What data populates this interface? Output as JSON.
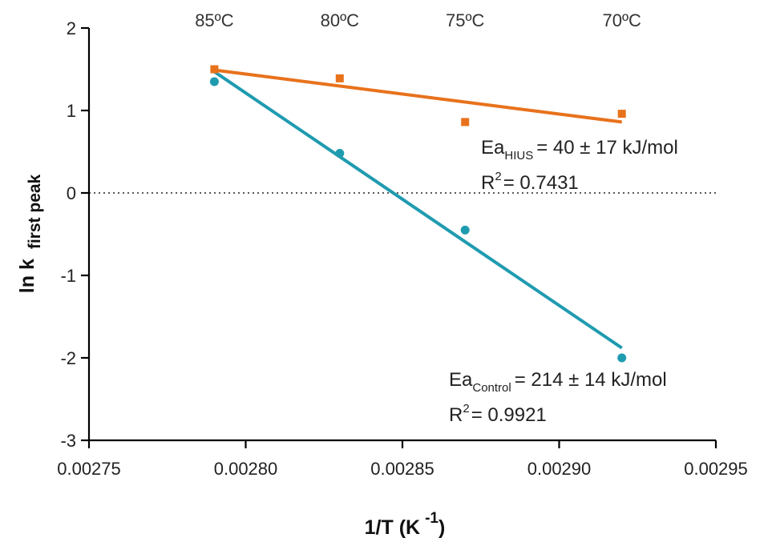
{
  "chart_data": {
    "type": "scatter",
    "xlabel": "1/T (K",
    "xlabel_sup": "-1",
    "xlabel_close": ")",
    "ylabel": "ln k",
    "ylabel_sub": "first peak",
    "xlim": [
      0.00275,
      0.00295
    ],
    "ylim": [
      -3,
      2
    ],
    "xticks": [
      0.00275,
      0.0028,
      0.00285,
      0.0029,
      0.00295
    ],
    "xtick_labels": [
      "0.00275",
      "0.00280",
      "0.00285",
      "0.00290",
      "0.00295"
    ],
    "yticks": [
      -3,
      -2,
      -1,
      0,
      1,
      2
    ],
    "ytick_labels": [
      "-3",
      "-2",
      "-1",
      "0",
      "1",
      "2"
    ],
    "reference_line_y": 0,
    "top_labels": [
      {
        "x": 0.00279,
        "text": "85ºC"
      },
      {
        "x": 0.00283,
        "text": "80ºC"
      },
      {
        "x": 0.00287,
        "text": "75ºC"
      },
      {
        "x": 0.00292,
        "text": "70ºC"
      }
    ],
    "series": [
      {
        "marker": "square",
        "color": "#e8721c",
        "points": [
          {
            "x": 0.00279,
            "y": 1.5
          },
          {
            "x": 0.00283,
            "y": 1.39
          },
          {
            "x": 0.00287,
            "y": 0.86
          },
          {
            "x": 0.00292,
            "y": 0.96
          }
        ],
        "fit": {
          "x1": 0.00279,
          "y1": 1.49,
          "x2": 0.00292,
          "y2": 0.86
        },
        "annotation": {
          "main": "Ea",
          "sub": "HIUS",
          "value": "= 40 ± 17 kJ/mol",
          "r2_label": "R",
          "r2_sup": "2",
          "r2_value": "= 0.7431"
        }
      },
      {
        "marker": "circle",
        "color": "#1f9bb0",
        "points": [
          {
            "x": 0.00279,
            "y": 1.35
          },
          {
            "x": 0.00283,
            "y": 0.48
          },
          {
            "x": 0.00287,
            "y": -0.45
          },
          {
            "x": 0.00292,
            "y": -2.0
          }
        ],
        "fit": {
          "x1": 0.00279,
          "y1": 1.47,
          "x2": 0.00292,
          "y2": -1.88
        },
        "annotation": {
          "main": "Ea",
          "sub": "Control",
          "value": "= 214 ± 14 kJ/mol",
          "r2_label": "R",
          "r2_sup": "2",
          "r2_value": "= 0.9921"
        }
      }
    ]
  }
}
